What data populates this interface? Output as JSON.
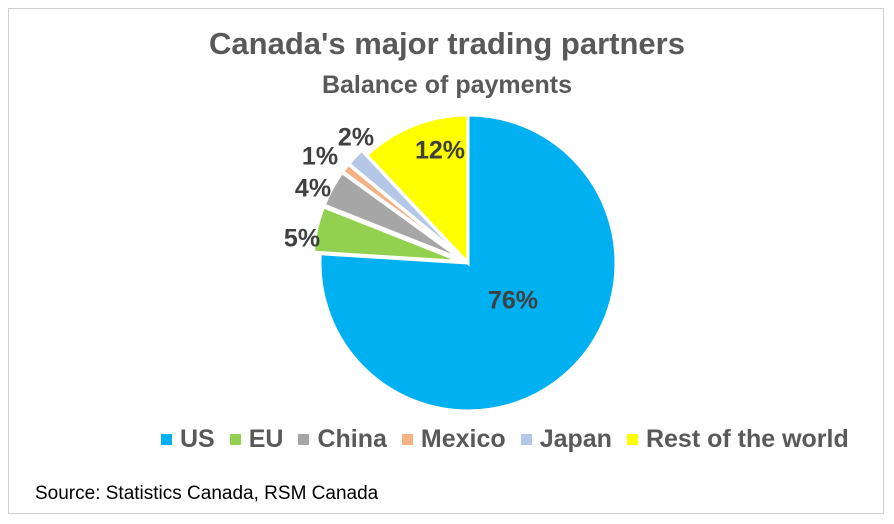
{
  "chart_data": {
    "type": "pie",
    "title": "Canada's major trading partners",
    "subtitle": "Balance of payments",
    "categories": [
      "US",
      "EU",
      "China",
      "Mexico",
      "Japan",
      "Rest of the world"
    ],
    "values": [
      76,
      5,
      4,
      1,
      2,
      12
    ],
    "labels": [
      "76%",
      "5%",
      "4%",
      "1%",
      "2%",
      "12%"
    ],
    "colors": [
      "#00B0F0",
      "#92D050",
      "#A6A6A6",
      "#F4B183",
      "#B4C7E7",
      "#FFFF00"
    ],
    "legend_position": "bottom",
    "source": "Source: Statistics Canada, RSM Canada"
  }
}
